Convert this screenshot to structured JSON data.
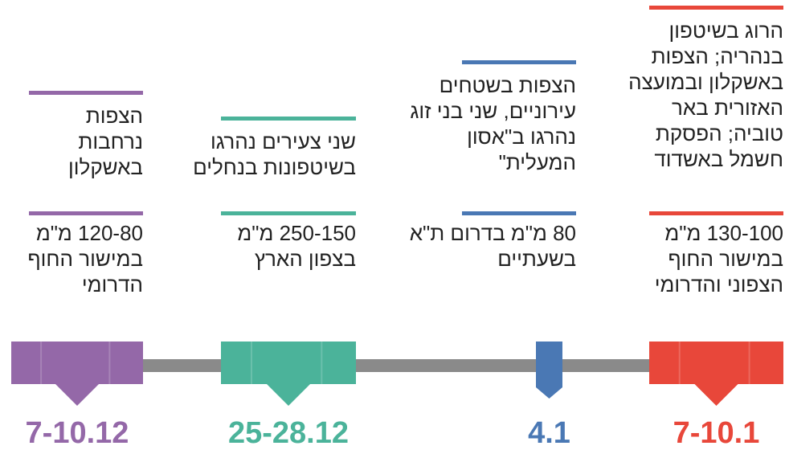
{
  "events": [
    {
      "date": "7-10.1",
      "color": "#e8473a",
      "rain": [
        "130-100 מ\"מ",
        "במישור החוף",
        "הצפוני והדרומי"
      ],
      "impact": [
        "הרוג בשיטפון",
        "בנהריה; הצפות",
        "באשקלון ובמועצה",
        "האזורית באר",
        "טוביה; הפסקת",
        "חשמל באשדוד"
      ]
    },
    {
      "date": "4.1",
      "color": "#4a78b4",
      "rain": [
        "80 מ\"מ בדרום ת\"א",
        "בשעתיים"
      ],
      "impact": [
        "הצפות בשטחים",
        "עירוניים, שני בני זוג",
        "נהרגו ב\"אסון",
        "המעלית\""
      ]
    },
    {
      "date": "25-28.12",
      "color": "#4bb39a",
      "rain": [
        "250-150 מ\"מ",
        "בצפון הארץ"
      ],
      "impact": [
        "שני צעירים נהרגו",
        "בשיטפונות בנחלים"
      ]
    },
    {
      "date": "7-10.12",
      "color": "#9468a8",
      "rain": [
        "120-80 מ\"מ",
        "במישור החוף",
        "הדרומי"
      ],
      "impact": [
        "הצפות",
        "נרחבות",
        "באשקלון"
      ]
    }
  ]
}
